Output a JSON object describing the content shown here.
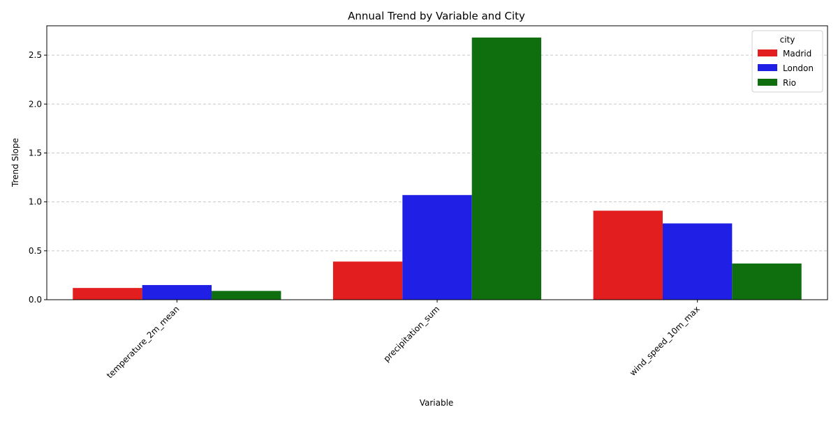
{
  "chart_data": {
    "type": "bar",
    "title": "Annual Trend by Variable and City",
    "xlabel": "Variable",
    "ylabel": "Trend Slope",
    "categories": [
      "temperature_2m_mean",
      "precipitation_sum",
      "wind_speed_10m_max"
    ],
    "series": [
      {
        "name": "Madrid",
        "color": "#e31e1e",
        "values": [
          0.12,
          0.39,
          0.91
        ]
      },
      {
        "name": "London",
        "color": "#1f1fe6",
        "values": [
          0.15,
          1.07,
          0.78
        ]
      },
      {
        "name": "Rio",
        "color": "#0f6f0f",
        "values": [
          0.09,
          2.68,
          0.37
        ]
      }
    ],
    "ylim": [
      0,
      2.8
    ],
    "yticks": [
      0.0,
      0.5,
      1.0,
      1.5,
      2.0,
      2.5
    ],
    "ytick_labels": [
      "0.0",
      "0.5",
      "1.0",
      "1.5",
      "2.0",
      "2.5"
    ],
    "grid": "y-dashed",
    "legend": {
      "title": "city",
      "placement": "top-right"
    },
    "xtick_rotation_deg": 45
  }
}
